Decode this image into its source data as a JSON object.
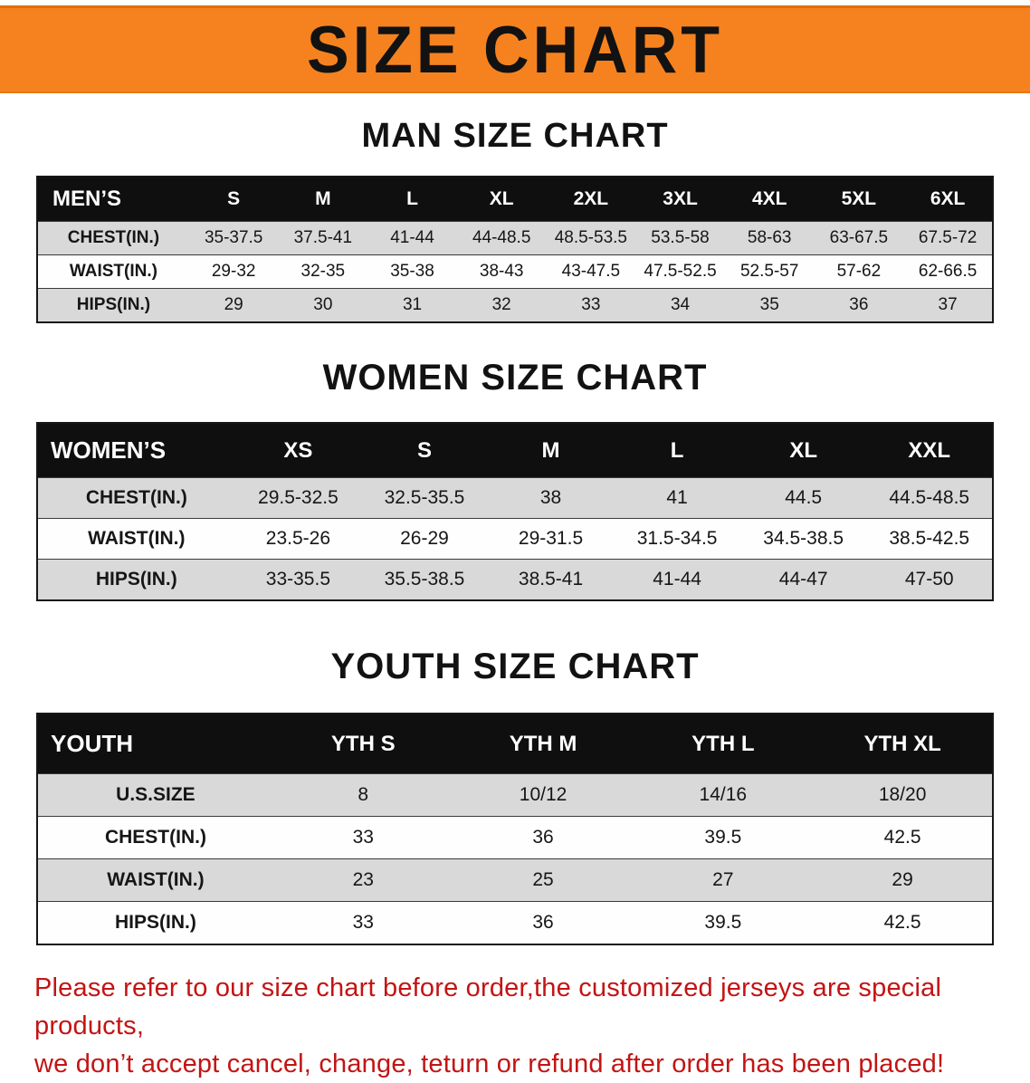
{
  "banner": {
    "title": "SIZE CHART",
    "bg_color": "#f6821f"
  },
  "sections": [
    {
      "id": "men",
      "heading": "MAN SIZE CHART",
      "table": {
        "header": [
          "MEN’S",
          "S",
          "M",
          "L",
          "XL",
          "2XL",
          "3XL",
          "4XL",
          "5XL",
          "6XL"
        ],
        "rows": [
          [
            "CHEST(IN.)",
            "35-37.5",
            "37.5-41",
            "41-44",
            "44-48.5",
            "48.5-53.5",
            "53.5-58",
            "58-63",
            "63-67.5",
            "67.5-72"
          ],
          [
            "WAIST(IN.)",
            "29-32",
            "32-35",
            "35-38",
            "38-43",
            "43-47.5",
            "47.5-52.5",
            "52.5-57",
            "57-62",
            "62-66.5"
          ],
          [
            "HIPS(IN.)",
            "29",
            "30",
            "31",
            "32",
            "33",
            "34",
            "35",
            "36",
            "37"
          ]
        ]
      }
    },
    {
      "id": "women",
      "heading": "WOMEN SIZE CHART",
      "table": {
        "header": [
          "WOMEN’S",
          "XS",
          "S",
          "M",
          "L",
          "XL",
          "XXL"
        ],
        "rows": [
          [
            "CHEST(IN.)",
            "29.5-32.5",
            "32.5-35.5",
            "38",
            "41",
            "44.5",
            "44.5-48.5"
          ],
          [
            "WAIST(IN.)",
            "23.5-26",
            "26-29",
            "29-31.5",
            "31.5-34.5",
            "34.5-38.5",
            "38.5-42.5"
          ],
          [
            "HIPS(IN.)",
            "33-35.5",
            "35.5-38.5",
            "38.5-41",
            "41-44",
            "44-47",
            "47-50"
          ]
        ]
      }
    },
    {
      "id": "youth",
      "heading": "YOUTH SIZE CHART",
      "table": {
        "header": [
          "YOUTH",
          "YTH S",
          "YTH M",
          "YTH L",
          "YTH XL"
        ],
        "rows": [
          [
            "U.S.SIZE",
            "8",
            "10/12",
            "14/16",
            "18/20"
          ],
          [
            "CHEST(IN.)",
            "33",
            "36",
            "39.5",
            "42.5"
          ],
          [
            "WAIST(IN.)",
            "23",
            "25",
            "27",
            "29"
          ],
          [
            "HIPS(IN.)",
            "33",
            "36",
            "39.5",
            "42.5"
          ]
        ]
      }
    }
  ],
  "disclaimer": {
    "line1": "Please refer to our size chart before order,the customized jerseys are special products,",
    "line2": "we don’t accept cancel, change, teturn or refund after order has been placed!",
    "color": "#c31414"
  }
}
